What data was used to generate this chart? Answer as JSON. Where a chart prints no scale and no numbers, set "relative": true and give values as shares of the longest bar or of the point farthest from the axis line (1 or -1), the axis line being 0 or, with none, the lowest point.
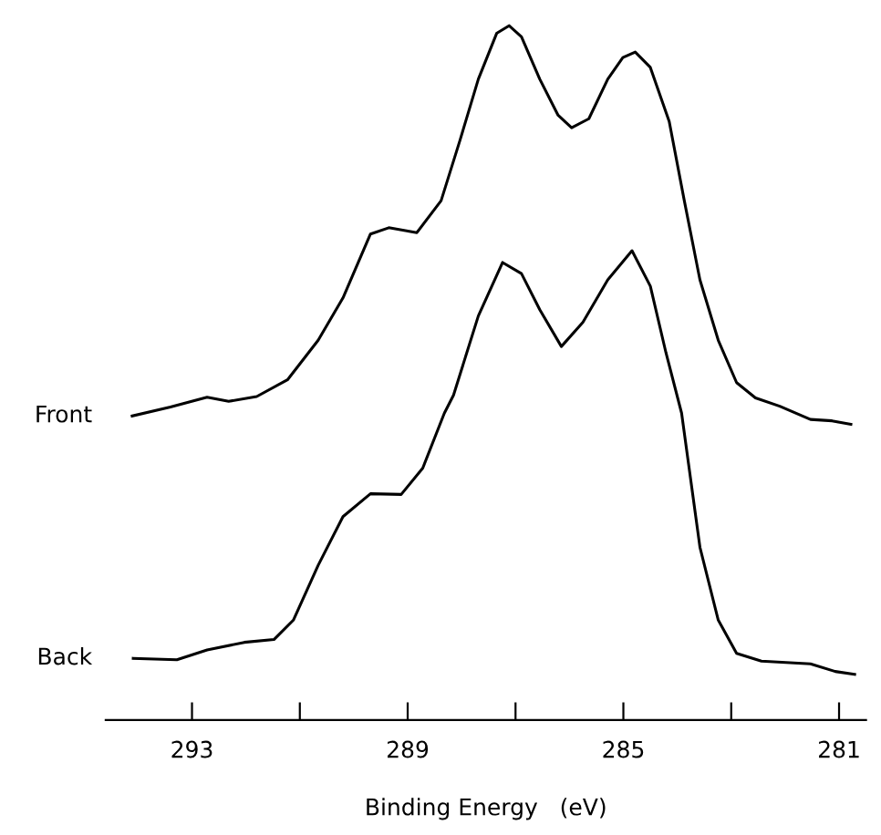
{
  "chart_data": {
    "type": "line",
    "relative": true,
    "xlabel": "Binding Energy   (eV)",
    "xlim": [
      294.6,
      280.5
    ],
    "xticks": [
      293,
      {
        "value": 291,
        "label": null
      },
      289,
      {
        "value": 287,
        "label": null
      },
      285,
      {
        "value": 283,
        "label": null
      },
      281
    ],
    "grid": false,
    "legend": false,
    "tick_labels": "x",
    "marker": "none",
    "line_style": "solid",
    "series": [
      {
        "name": "Front",
        "color": "#000000",
        "x": [
          294.11,
          293.4,
          292.72,
          292.32,
          291.8,
          291.23,
          290.66,
          290.2,
          289.69,
          289.35,
          288.83,
          288.38,
          288.03,
          287.69,
          287.35,
          287.12,
          286.89,
          286.55,
          286.21,
          285.96,
          285.64,
          285.29,
          285.01,
          284.78,
          284.5,
          284.15,
          283.87,
          283.58,
          283.24,
          282.9,
          282.55,
          282.1,
          281.53,
          281.13,
          280.78
        ],
        "values": [
          0.438,
          0.451,
          0.465,
          0.459,
          0.466,
          0.49,
          0.547,
          0.608,
          0.7,
          0.709,
          0.702,
          0.748,
          0.835,
          0.923,
          0.989,
          1.0,
          0.984,
          0.923,
          0.871,
          0.853,
          0.866,
          0.923,
          0.954,
          0.962,
          0.94,
          0.862,
          0.748,
          0.634,
          0.547,
          0.486,
          0.464,
          0.452,
          0.433,
          0.431,
          0.426
        ]
      },
      {
        "name": "Back",
        "color": "#000000",
        "x": [
          294.09,
          293.28,
          292.72,
          292.03,
          291.48,
          291.12,
          290.66,
          290.2,
          289.69,
          289.12,
          288.72,
          288.32,
          288.15,
          287.69,
          287.24,
          286.89,
          286.55,
          286.15,
          285.75,
          285.29,
          284.84,
          284.5,
          284.21,
          283.92,
          283.58,
          283.24,
          282.9,
          282.44,
          281.53,
          281.07,
          280.71
        ],
        "values": [
          0.089,
          0.087,
          0.101,
          0.112,
          0.116,
          0.144,
          0.223,
          0.293,
          0.326,
          0.325,
          0.363,
          0.442,
          0.468,
          0.582,
          0.659,
          0.643,
          0.591,
          0.538,
          0.573,
          0.634,
          0.676,
          0.625,
          0.529,
          0.442,
          0.249,
          0.144,
          0.096,
          0.085,
          0.081,
          0.07,
          0.066
        ]
      }
    ]
  }
}
